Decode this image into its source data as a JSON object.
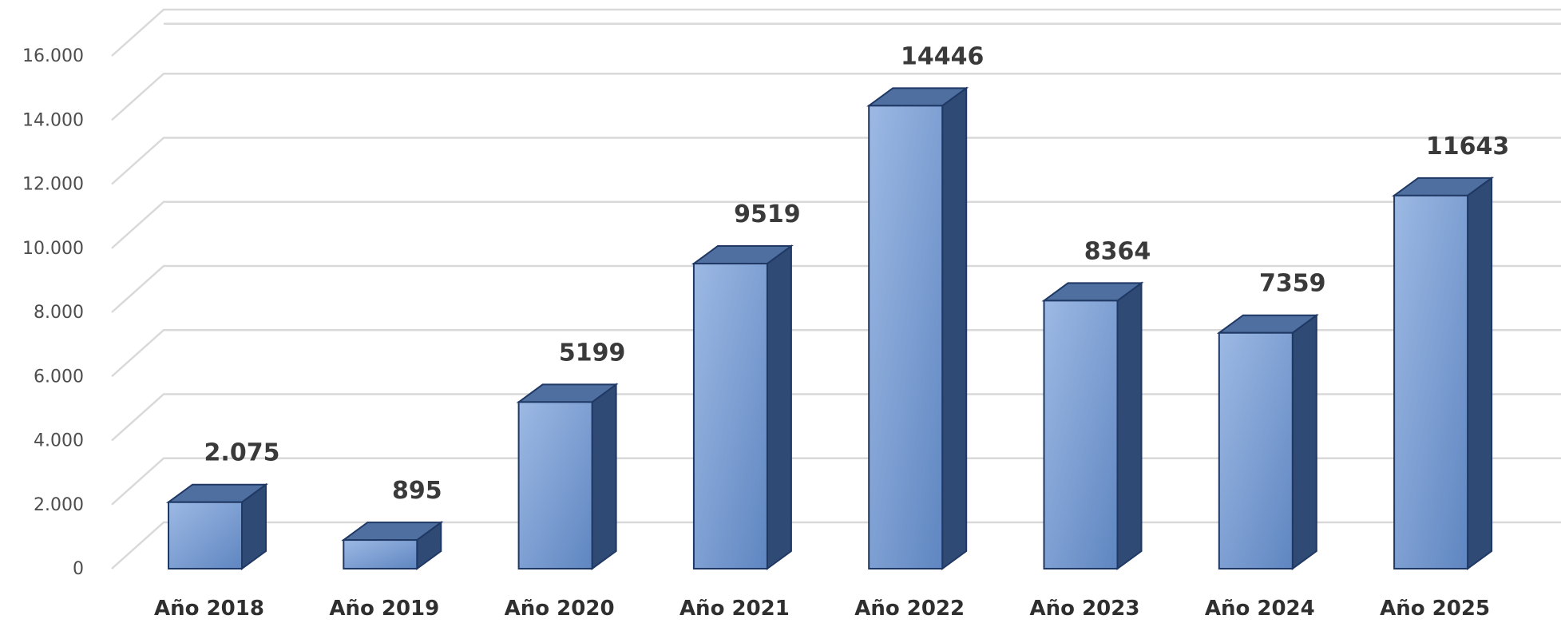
{
  "chart_data": {
    "type": "bar",
    "categories": [
      "Año 2018",
      "Año 2019",
      "Año 2020",
      "Año 2021",
      "Año 2022",
      "Año 2023",
      "Año 2024",
      "Año 2025"
    ],
    "values": [
      2075,
      895,
      5199,
      9519,
      14446,
      8364,
      7359,
      11643
    ],
    "data_labels": [
      "2.075",
      "895",
      "5199",
      "9519",
      "14446",
      "8364",
      "7359",
      "11643"
    ],
    "yticks": [
      0,
      2000,
      4000,
      6000,
      8000,
      10000,
      12000,
      14000,
      16000
    ],
    "ytick_labels": [
      "0",
      "2.000",
      "4.000",
      "6.000",
      "8.000",
      "10.000",
      "12.000",
      "14.000",
      "16.000"
    ],
    "ylim": [
      0,
      17000
    ],
    "title": "",
    "xlabel": "",
    "ylabel": "",
    "grid": true,
    "legend": "none",
    "style": "3d-column",
    "colors": {
      "bar_front_light": "#9db9e4",
      "bar_front_dark": "#5f86c1",
      "bar_top": "#4f6fa0",
      "bar_side": "#2f4a74",
      "bar_outline": "#1f3864",
      "grid": "#d9d9d9"
    }
  }
}
